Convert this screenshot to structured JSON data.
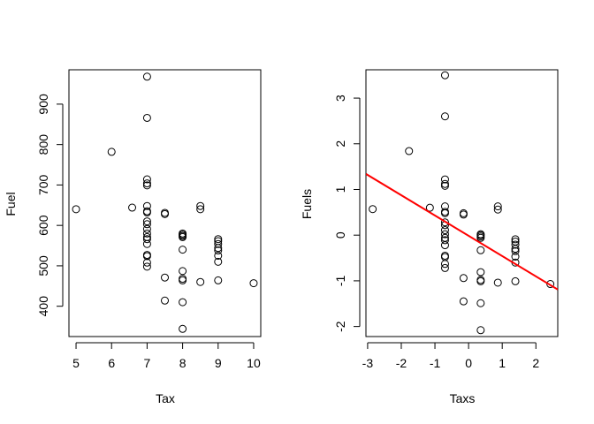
{
  "chart_data": [
    {
      "type": "scatter",
      "title": "",
      "xlabel": "Tax",
      "ylabel": "Fuel",
      "xlim": [
        4.8,
        10.2
      ],
      "ylim": [
        325,
        985
      ],
      "xticks": [
        "5",
        "6",
        "7",
        "8",
        "9",
        "10"
      ],
      "yticks": [
        "400",
        "500",
        "600",
        "700",
        "800",
        "900"
      ],
      "xtick_values": [
        5,
        6,
        7,
        8,
        9,
        10
      ],
      "ytick_values": [
        400,
        500,
        600,
        700,
        800,
        900
      ],
      "grid": false,
      "legend": "none",
      "point_color": "#000000",
      "points": [
        {
          "x": 5,
          "y": 640
        },
        {
          "x": 6,
          "y": 782
        },
        {
          "x": 6.58,
          "y": 644
        },
        {
          "x": 7,
          "y": 968
        },
        {
          "x": 7,
          "y": 866
        },
        {
          "x": 7,
          "y": 714
        },
        {
          "x": 7,
          "y": 704
        },
        {
          "x": 7,
          "y": 699
        },
        {
          "x": 7,
          "y": 648
        },
        {
          "x": 7,
          "y": 635
        },
        {
          "x": 7,
          "y": 632
        },
        {
          "x": 7,
          "y": 610
        },
        {
          "x": 7,
          "y": 603
        },
        {
          "x": 7,
          "y": 591
        },
        {
          "x": 7,
          "y": 580
        },
        {
          "x": 7,
          "y": 571
        },
        {
          "x": 7,
          "y": 566
        },
        {
          "x": 7,
          "y": 554
        },
        {
          "x": 7,
          "y": 527
        },
        {
          "x": 7,
          "y": 524
        },
        {
          "x": 7,
          "y": 508
        },
        {
          "x": 7,
          "y": 498
        },
        {
          "x": 7.5,
          "y": 631
        },
        {
          "x": 7.5,
          "y": 628
        },
        {
          "x": 7.5,
          "y": 471
        },
        {
          "x": 7.5,
          "y": 414
        },
        {
          "x": 8,
          "y": 580
        },
        {
          "x": 8,
          "y": 577
        },
        {
          "x": 8,
          "y": 574
        },
        {
          "x": 8,
          "y": 571
        },
        {
          "x": 8,
          "y": 540
        },
        {
          "x": 8,
          "y": 487
        },
        {
          "x": 8,
          "y": 468
        },
        {
          "x": 8,
          "y": 464
        },
        {
          "x": 8,
          "y": 410
        },
        {
          "x": 8,
          "y": 344
        },
        {
          "x": 8.5,
          "y": 648
        },
        {
          "x": 8.5,
          "y": 640
        },
        {
          "x": 8.5,
          "y": 460
        },
        {
          "x": 9,
          "y": 566
        },
        {
          "x": 9,
          "y": 561
        },
        {
          "x": 9,
          "y": 554
        },
        {
          "x": 9,
          "y": 544
        },
        {
          "x": 9,
          "y": 538
        },
        {
          "x": 9,
          "y": 525
        },
        {
          "x": 9,
          "y": 510
        },
        {
          "x": 9,
          "y": 464
        },
        {
          "x": 10,
          "y": 457
        }
      ]
    },
    {
      "type": "scatter",
      "title": "",
      "xlabel": "Taxs",
      "ylabel": "Fuels",
      "xlim": [
        -3.05,
        2.65
      ],
      "ylim": [
        -2.22,
        3.62
      ],
      "xticks": [
        "-3",
        "-2",
        "-1",
        "0",
        "1",
        "2"
      ],
      "yticks": [
        "-2",
        "-1",
        "0",
        "1",
        "2",
        "3"
      ],
      "xtick_values": [
        -3,
        -2,
        -1,
        0,
        1,
        2
      ],
      "ytick_values": [
        -2,
        -1,
        0,
        1,
        2,
        3
      ],
      "grid": false,
      "legend": "none",
      "point_color": "#000000",
      "line_color": "#ff0000",
      "fit_line": {
        "x": [
          -3.05,
          2.65
        ],
        "y": [
          1.34,
          -1.19
        ]
      },
      "points": [
        {
          "x": -2.85,
          "y": 0.57
        },
        {
          "x": -1.77,
          "y": 1.84
        },
        {
          "x": -1.15,
          "y": 0.6
        },
        {
          "x": -0.7,
          "y": 3.5
        },
        {
          "x": -0.7,
          "y": 2.6
        },
        {
          "x": -0.7,
          "y": 1.22
        },
        {
          "x": -0.7,
          "y": 1.12
        },
        {
          "x": -0.7,
          "y": 1.08
        },
        {
          "x": -0.7,
          "y": 0.63
        },
        {
          "x": -0.7,
          "y": 0.51
        },
        {
          "x": -0.7,
          "y": 0.48
        },
        {
          "x": -0.7,
          "y": 0.28
        },
        {
          "x": -0.7,
          "y": 0.22
        },
        {
          "x": -0.7,
          "y": 0.11
        },
        {
          "x": -0.7,
          "y": 0.02
        },
        {
          "x": -0.7,
          "y": -0.06
        },
        {
          "x": -0.7,
          "y": -0.11
        },
        {
          "x": -0.7,
          "y": -0.22
        },
        {
          "x": -0.7,
          "y": -0.45
        },
        {
          "x": -0.7,
          "y": -0.48
        },
        {
          "x": -0.7,
          "y": -0.63
        },
        {
          "x": -0.7,
          "y": -0.72
        },
        {
          "x": -0.15,
          "y": 0.48
        },
        {
          "x": -0.15,
          "y": 0.45
        },
        {
          "x": -0.15,
          "y": -0.94
        },
        {
          "x": -0.15,
          "y": -1.45
        },
        {
          "x": 0.36,
          "y": 0.02
        },
        {
          "x": 0.36,
          "y": 0.0
        },
        {
          "x": 0.36,
          "y": -0.03
        },
        {
          "x": 0.36,
          "y": -0.06
        },
        {
          "x": 0.36,
          "y": -0.33
        },
        {
          "x": 0.36,
          "y": -0.81
        },
        {
          "x": 0.36,
          "y": -0.98
        },
        {
          "x": 0.36,
          "y": -1.01
        },
        {
          "x": 0.36,
          "y": -1.49
        },
        {
          "x": 0.36,
          "y": -2.08
        },
        {
          "x": 0.87,
          "y": 0.63
        },
        {
          "x": 0.87,
          "y": 0.56
        },
        {
          "x": 0.87,
          "y": -1.04
        },
        {
          "x": 1.39,
          "y": -0.09
        },
        {
          "x": 1.39,
          "y": -0.14
        },
        {
          "x": 1.39,
          "y": -0.21
        },
        {
          "x": 1.39,
          "y": -0.3
        },
        {
          "x": 1.39,
          "y": -0.35
        },
        {
          "x": 1.39,
          "y": -0.47
        },
        {
          "x": 1.39,
          "y": -0.6
        },
        {
          "x": 1.39,
          "y": -1.01
        },
        {
          "x": 2.43,
          "y": -1.07
        }
      ]
    }
  ]
}
